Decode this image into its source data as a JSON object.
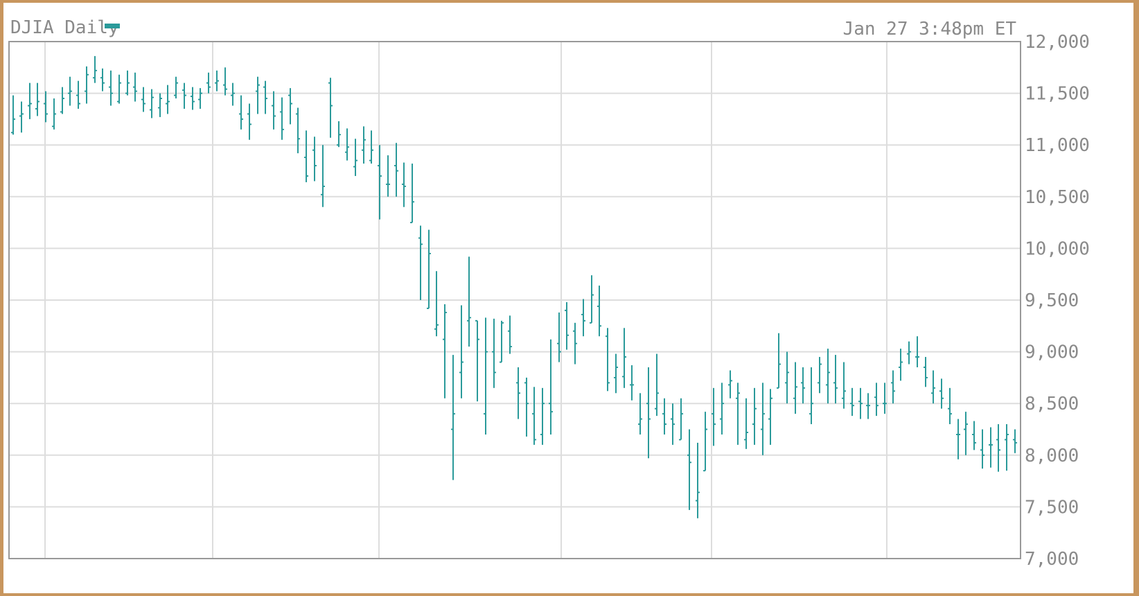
{
  "header": {
    "title": "DJIA Daily",
    "timestamp": "Jan 27 3:48pm ET",
    "legend_color": "#2a9a9a"
  },
  "colors": {
    "series": "#2a9a9a",
    "grid": "#dddddd",
    "axis": "#999999",
    "text": "#8a8a8a"
  },
  "chart_data": {
    "type": "ohlc",
    "title": "DJIA Daily",
    "ylim": [
      7000,
      12000
    ],
    "y_ticks": [
      12000,
      11500,
      11000,
      10500,
      10000,
      9500,
      9000,
      8500,
      8000,
      7500,
      7000
    ],
    "y_tick_labels": [
      "12,000",
      "11,500",
      "11,000",
      "10,500",
      "10,000",
      "9,500",
      "9,000",
      "8,500",
      "8,000",
      "7,500",
      "7,000"
    ],
    "grid": true,
    "legend": "top-left",
    "series": [
      {
        "values": [
          [
            11120,
            11480,
            11100,
            11250
          ],
          [
            11280,
            11420,
            11120,
            11300
          ],
          [
            11380,
            11600,
            11250,
            11400
          ],
          [
            11350,
            11600,
            11280,
            11420
          ],
          [
            11400,
            11520,
            11220,
            11300
          ],
          [
            11180,
            11450,
            11150,
            11300
          ],
          [
            11320,
            11560,
            11300,
            11450
          ],
          [
            11500,
            11660,
            11380,
            11520
          ],
          [
            11480,
            11620,
            11350,
            11400
          ],
          [
            11520,
            11760,
            11400,
            11680
          ],
          [
            11650,
            11860,
            11600,
            11720
          ],
          [
            11650,
            11740,
            11520,
            11600
          ],
          [
            11560,
            11720,
            11380,
            11500
          ],
          [
            11420,
            11680,
            11400,
            11600
          ],
          [
            11500,
            11720,
            11480,
            11600
          ],
          [
            11560,
            11700,
            11420,
            11520
          ],
          [
            11440,
            11560,
            11320,
            11400
          ],
          [
            11340,
            11540,
            11260,
            11460
          ],
          [
            11360,
            11500,
            11270,
            11450
          ],
          [
            11400,
            11580,
            11300,
            11420
          ],
          [
            11480,
            11660,
            11450,
            11600
          ],
          [
            11530,
            11600,
            11350,
            11480
          ],
          [
            11470,
            11560,
            11340,
            11420
          ],
          [
            11440,
            11550,
            11350,
            11500
          ],
          [
            11600,
            11700,
            11500,
            11560
          ],
          [
            11600,
            11720,
            11520,
            11620
          ],
          [
            11580,
            11750,
            11480,
            11540
          ],
          [
            11480,
            11600,
            11380,
            11500
          ],
          [
            11300,
            11480,
            11150,
            11250
          ],
          [
            11300,
            11400,
            11050,
            11200
          ],
          [
            11520,
            11660,
            11300,
            11580
          ],
          [
            11560,
            11620,
            11300,
            11450
          ],
          [
            11380,
            11520,
            11150,
            11280
          ],
          [
            11320,
            11460,
            11050,
            11150
          ],
          [
            11480,
            11550,
            11200,
            11400
          ],
          [
            11300,
            11360,
            10920,
            11060
          ],
          [
            10880,
            11140,
            10640,
            10700
          ],
          [
            10950,
            11080,
            10650,
            10800
          ],
          [
            10520,
            11000,
            10400,
            10600
          ],
          [
            11600,
            11650,
            11070,
            11380
          ],
          [
            11000,
            11230,
            10980,
            11100
          ],
          [
            10930,
            11160,
            10850,
            10980
          ],
          [
            10790,
            11060,
            10700,
            10850
          ],
          [
            10950,
            11180,
            10820,
            11050
          ],
          [
            10850,
            11140,
            10820,
            10950
          ],
          [
            10800,
            11000,
            10280,
            10700
          ],
          [
            10620,
            10900,
            10500,
            10620
          ],
          [
            10800,
            11020,
            10500,
            10750
          ],
          [
            10620,
            10830,
            10400,
            10600
          ],
          [
            10250,
            10820,
            10300,
            10450
          ],
          [
            10100,
            10220,
            9500,
            10040
          ],
          [
            9420,
            10180,
            9480,
            9950
          ],
          [
            9220,
            9780,
            9150,
            9260
          ],
          [
            9120,
            9460,
            8550,
            9380
          ],
          [
            8250,
            8970,
            7760,
            8400
          ],
          [
            8800,
            9450,
            8550,
            8900
          ],
          [
            9300,
            9920,
            9050,
            9330
          ],
          [
            9300,
            9150,
            8520,
            9120
          ],
          [
            8400,
            9330,
            8200,
            9000
          ],
          [
            9000,
            9320,
            8650,
            8800
          ],
          [
            8900,
            9300,
            8900,
            9280
          ],
          [
            9200,
            9350,
            8980,
            9050
          ],
          [
            8700,
            8850,
            8350,
            8600
          ],
          [
            8700,
            8750,
            8180,
            8500
          ],
          [
            8400,
            8660,
            8100,
            8150
          ],
          [
            8200,
            8650,
            8100,
            8500
          ],
          [
            8500,
            9120,
            8200,
            8420
          ],
          [
            9080,
            9380,
            8900,
            9000
          ],
          [
            9400,
            9480,
            9020,
            9160
          ],
          [
            9200,
            9280,
            8880,
            9080
          ],
          [
            9360,
            9510,
            9150,
            9300
          ],
          [
            9280,
            9740,
            9400,
            9550
          ],
          [
            9440,
            9640,
            9150,
            9250
          ],
          [
            9150,
            9230,
            8620,
            8700
          ],
          [
            8750,
            8980,
            8600,
            8850
          ],
          [
            8760,
            9230,
            8650,
            8950
          ],
          [
            8680,
            8870,
            8530,
            8680
          ],
          [
            8300,
            8600,
            8200,
            8350
          ],
          [
            8500,
            8850,
            7970,
            8350
          ],
          [
            8450,
            8980,
            8380,
            8600
          ],
          [
            8400,
            8550,
            8200,
            8300
          ],
          [
            8350,
            8500,
            8100,
            8300
          ],
          [
            8150,
            8550,
            8150,
            8400
          ],
          [
            8000,
            8250,
            7470,
            7930
          ],
          [
            7560,
            8120,
            7390,
            7640
          ],
          [
            7850,
            8420,
            8020,
            8250
          ],
          [
            8400,
            8650,
            8090,
            8300
          ],
          [
            8350,
            8700,
            8200,
            8500
          ],
          [
            8680,
            8820,
            8550,
            8720
          ],
          [
            8550,
            8700,
            8100,
            8600
          ],
          [
            8150,
            8550,
            8060,
            8220
          ],
          [
            8300,
            8650,
            8100,
            8450
          ],
          [
            8250,
            8700,
            8000,
            8400
          ],
          [
            8350,
            8640,
            8100,
            8550
          ],
          [
            8650,
            9180,
            8650,
            8880
          ],
          [
            8700,
            9000,
            8500,
            8800
          ],
          [
            8550,
            8900,
            8400,
            8660
          ],
          [
            8700,
            8850,
            8500,
            8650
          ],
          [
            8400,
            8850,
            8300,
            8500
          ],
          [
            8700,
            8950,
            8600,
            8880
          ],
          [
            8680,
            9030,
            8500,
            8800
          ],
          [
            8700,
            8970,
            8500,
            8650
          ],
          [
            8550,
            8900,
            8450,
            8620
          ],
          [
            8500,
            8650,
            8380,
            8480
          ],
          [
            8520,
            8650,
            8350,
            8500
          ],
          [
            8480,
            8600,
            8350,
            8480
          ],
          [
            8560,
            8700,
            8380,
            8480
          ],
          [
            8500,
            8700,
            8400,
            8500
          ],
          [
            8700,
            8820,
            8500,
            8620
          ],
          [
            8850,
            9030,
            8720,
            8900
          ],
          [
            8980,
            9100,
            8880,
            9000
          ],
          [
            8950,
            9150,
            8850,
            8950
          ],
          [
            8850,
            8950,
            8660,
            8750
          ],
          [
            8600,
            8820,
            8500,
            8650
          ],
          [
            8620,
            8740,
            8450,
            8550
          ],
          [
            8450,
            8650,
            8300,
            8400
          ],
          [
            8200,
            8350,
            7960,
            8200
          ],
          [
            8250,
            8420,
            8000,
            8300
          ],
          [
            8200,
            8330,
            8050,
            8120
          ],
          [
            8050,
            8250,
            7870,
            8000
          ],
          [
            8100,
            8270,
            7880,
            8100
          ],
          [
            8150,
            8300,
            7840,
            8050
          ],
          [
            8150,
            8300,
            7850,
            8200
          ],
          [
            8150,
            8250,
            8020,
            8120
          ]
        ]
      }
    ]
  }
}
